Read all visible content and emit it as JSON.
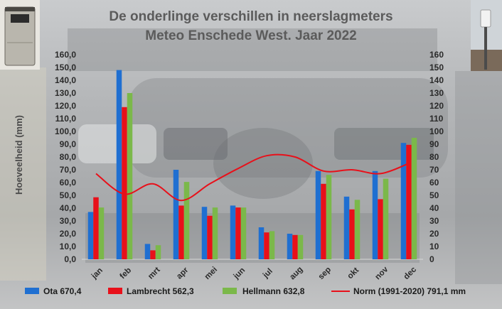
{
  "chart_data": {
    "type": "bar",
    "title": "De onderlinge verschillen in neerslagmeters",
    "subtitle": "Meteo Enschede West. Jaar 2022",
    "ylabel": "Hoeveelheid (mm)",
    "ylim": [
      0,
      160
    ],
    "y_ticks_left": [
      "0,0",
      "10,0",
      "20,0",
      "30,0",
      "40,0",
      "50,0",
      "60,0",
      "70,0",
      "80,0",
      "90,0",
      "100,0",
      "110,0",
      "120,0",
      "130,0",
      "140,0",
      "150,0",
      "160,0"
    ],
    "y_ticks_right": [
      "0",
      "10",
      "20",
      "30",
      "40",
      "50",
      "60",
      "70",
      "80",
      "90",
      "100",
      "110",
      "120",
      "130",
      "140",
      "150",
      "160"
    ],
    "categories": [
      "jan",
      "feb",
      "mrt",
      "apr",
      "mei",
      "jun",
      "jul",
      "aug",
      "sep",
      "okt",
      "nov",
      "dec"
    ],
    "series": [
      {
        "name": "Ota",
        "legend": "Ota  670,4",
        "color": "#1f6fd1",
        "type": "bar",
        "values": [
          37,
          148,
          12,
          70,
          41,
          42,
          25,
          20,
          69,
          49,
          69,
          91
        ]
      },
      {
        "name": "Lambrecht",
        "legend": "Lambrecht  562,3",
        "color": "#e8101a",
        "type": "bar",
        "values": [
          48.5,
          119,
          7,
          42,
          34,
          40.5,
          21,
          19,
          59,
          39,
          47,
          89.5
        ]
      },
      {
        "name": "Hellmann",
        "legend": "Hellmann  632,8",
        "color": "#7bb84a",
        "type": "bar",
        "values": [
          40.5,
          130,
          11,
          60.5,
          40.5,
          40.5,
          22,
          19,
          66,
          46.5,
          63,
          95
        ]
      },
      {
        "name": "Norm (1991-2020)",
        "legend": "Norm (1991-2020) 791,1 mm",
        "color": "#e8101a",
        "type": "line",
        "values": [
          67,
          51,
          59,
          46,
          59,
          71,
          81,
          80,
          69,
          70,
          67,
          75
        ]
      }
    ],
    "grid": false,
    "legend_position": "bottom"
  },
  "colors": {
    "title": "#5b5b5b",
    "axis_line": "#d9d9d9"
  },
  "icons": {
    "left_photo": "rain-gauge-photo-icon",
    "right_photo": "rain-gauge-mast-photo-icon"
  }
}
